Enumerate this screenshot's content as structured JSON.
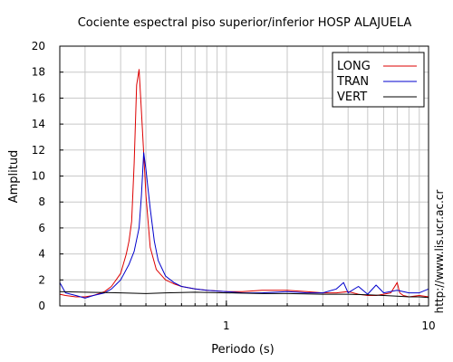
{
  "chart_data": {
    "type": "line",
    "title": "Cociente espectral piso superior/inferior  HOSP ALAJUELA",
    "xlabel": "Periodo (s)",
    "ylabel": "Amplitud",
    "xscale": "log",
    "xlim": [
      0.15,
      10
    ],
    "ylim": [
      0,
      20
    ],
    "yticks": [
      0,
      2,
      4,
      6,
      8,
      10,
      12,
      14,
      16,
      18,
      20
    ],
    "xtick_labels": [
      {
        "value": 1,
        "label": "1"
      },
      {
        "value": 10,
        "label": "10"
      }
    ],
    "grid": true,
    "legend_position": "top-right",
    "watermark": "http://www.lis.ucr.ac.cr",
    "series": [
      {
        "name": "LONG",
        "color": "#dd0000",
        "x": [
          0.15,
          0.16,
          0.18,
          0.2,
          0.22,
          0.25,
          0.27,
          0.3,
          0.32,
          0.33,
          0.34,
          0.35,
          0.36,
          0.37,
          0.38,
          0.4,
          0.42,
          0.45,
          0.5,
          0.55,
          0.6,
          0.7,
          0.8,
          1.0,
          1.2,
          1.5,
          2,
          2.5,
          3,
          3.5,
          4,
          4.5,
          5,
          5.5,
          6,
          6.5,
          7,
          7.2,
          7.5,
          8,
          9,
          10
        ],
        "y": [
          0.9,
          0.8,
          0.7,
          0.7,
          0.8,
          1.1,
          1.5,
          2.5,
          4.0,
          5.0,
          6.5,
          11.0,
          17.0,
          18.2,
          15.0,
          8.5,
          4.5,
          2.8,
          2.0,
          1.7,
          1.5,
          1.3,
          1.2,
          1.1,
          1.1,
          1.2,
          1.2,
          1.1,
          1.0,
          1.0,
          1.1,
          0.9,
          0.8,
          0.8,
          0.9,
          1.0,
          1.8,
          1.0,
          0.8,
          0.7,
          0.8,
          0.7
        ]
      },
      {
        "name": "TRAN",
        "color": "#0000cc",
        "x": [
          0.15,
          0.16,
          0.18,
          0.2,
          0.22,
          0.25,
          0.27,
          0.3,
          0.33,
          0.35,
          0.37,
          0.38,
          0.39,
          0.4,
          0.41,
          0.42,
          0.44,
          0.46,
          0.5,
          0.55,
          0.6,
          0.7,
          0.8,
          1.0,
          1.2,
          1.5,
          2,
          2.5,
          3,
          3.5,
          3.8,
          4,
          4.5,
          5,
          5.5,
          6,
          7,
          8,
          9,
          10
        ],
        "y": [
          1.8,
          1.0,
          0.8,
          0.6,
          0.8,
          1.0,
          1.3,
          2.0,
          3.2,
          4.2,
          6.0,
          8.5,
          11.8,
          10.5,
          9.0,
          7.5,
          5.0,
          3.5,
          2.3,
          1.8,
          1.5,
          1.3,
          1.2,
          1.1,
          1.0,
          1.0,
          1.1,
          1.0,
          1.0,
          1.3,
          1.8,
          1.0,
          1.5,
          0.9,
          1.6,
          1.0,
          1.2,
          1.0,
          1.0,
          1.3
        ]
      },
      {
        "name": "VERT",
        "color": "#000000",
        "x": [
          0.15,
          0.2,
          0.3,
          0.4,
          0.5,
          0.7,
          1.0,
          1.5,
          2,
          3,
          4,
          5,
          6,
          7,
          8,
          9,
          10
        ],
        "y": [
          1.1,
          1.05,
          1.0,
          0.95,
          1.0,
          1.05,
          1.0,
          0.95,
          0.95,
          0.9,
          0.9,
          0.85,
          0.8,
          0.75,
          0.7,
          0.7,
          0.65
        ]
      }
    ]
  }
}
